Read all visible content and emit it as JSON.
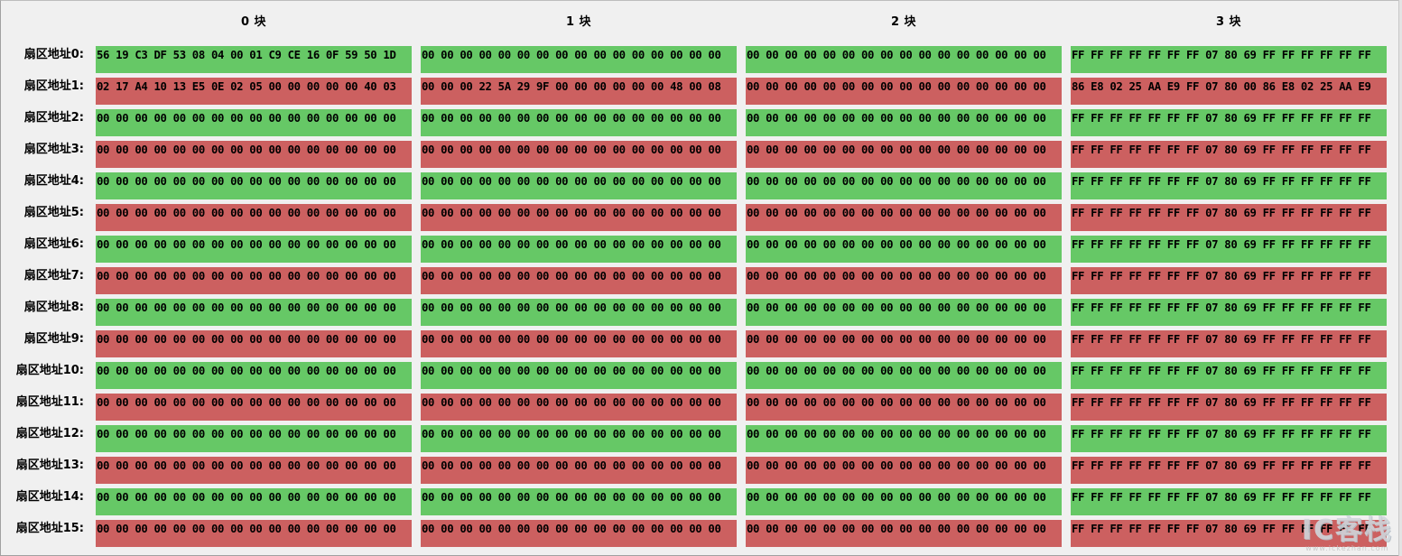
{
  "column_headers": [
    "0 块",
    "1 块",
    "2 块",
    "3 块"
  ],
  "row_labels": [
    "扇区地址0:",
    "扇区地址1:",
    "扇区地址2:",
    "扇区地址3:",
    "扇区地址4:",
    "扇区地址5:",
    "扇区地址6:",
    "扇区地址7:",
    "扇区地址8:",
    "扇区地址9:",
    "扇区地址10:",
    "扇区地址11:",
    "扇区地址12:",
    "扇区地址13:",
    "扇区地址14:",
    "扇区地址15:"
  ],
  "cell_colors": {
    "green": "#66c866",
    "red": "#cc6060"
  },
  "sectors": [
    {
      "color": "green",
      "blocks": [
        "56 19 C3 DF 53 08 04 00 01 C9 CE 16 0F 59 50 1D",
        "00 00 00 00 00 00 00 00 00 00 00 00 00 00 00 00",
        "00 00 00 00 00 00 00 00 00 00 00 00 00 00 00 00",
        "FF FF FF FF FF FF FF 07 80 69 FF FF FF FF FF FF"
      ]
    },
    {
      "color": "red",
      "blocks": [
        "02 17 A4 10 13 E5 0E 02 05 00 00 00 00 00 40 03",
        "00 00 00 22 5A 29 9F 00 00 00 00 00 00 48 00 08",
        "00 00 00 00 00 00 00 00 00 00 00 00 00 00 00 00",
        "86 E8 02 25 AA E9 FF 07 80 00 86 E8 02 25 AA E9"
      ]
    },
    {
      "color": "green",
      "blocks": [
        "00 00 00 00 00 00 00 00 00 00 00 00 00 00 00 00",
        "00 00 00 00 00 00 00 00 00 00 00 00 00 00 00 00",
        "00 00 00 00 00 00 00 00 00 00 00 00 00 00 00 00",
        "FF FF FF FF FF FF FF 07 80 69 FF FF FF FF FF FF"
      ]
    },
    {
      "color": "red",
      "blocks": [
        "00 00 00 00 00 00 00 00 00 00 00 00 00 00 00 00",
        "00 00 00 00 00 00 00 00 00 00 00 00 00 00 00 00",
        "00 00 00 00 00 00 00 00 00 00 00 00 00 00 00 00",
        "FF FF FF FF FF FF FF 07 80 69 FF FF FF FF FF FF"
      ]
    },
    {
      "color": "green",
      "blocks": [
        "00 00 00 00 00 00 00 00 00 00 00 00 00 00 00 00",
        "00 00 00 00 00 00 00 00 00 00 00 00 00 00 00 00",
        "00 00 00 00 00 00 00 00 00 00 00 00 00 00 00 00",
        "FF FF FF FF FF FF FF 07 80 69 FF FF FF FF FF FF"
      ]
    },
    {
      "color": "red",
      "blocks": [
        "00 00 00 00 00 00 00 00 00 00 00 00 00 00 00 00",
        "00 00 00 00 00 00 00 00 00 00 00 00 00 00 00 00",
        "00 00 00 00 00 00 00 00 00 00 00 00 00 00 00 00",
        "FF FF FF FF FF FF FF 07 80 69 FF FF FF FF FF FF"
      ]
    },
    {
      "color": "green",
      "blocks": [
        "00 00 00 00 00 00 00 00 00 00 00 00 00 00 00 00",
        "00 00 00 00 00 00 00 00 00 00 00 00 00 00 00 00",
        "00 00 00 00 00 00 00 00 00 00 00 00 00 00 00 00",
        "FF FF FF FF FF FF FF 07 80 69 FF FF FF FF FF FF"
      ]
    },
    {
      "color": "red",
      "blocks": [
        "00 00 00 00 00 00 00 00 00 00 00 00 00 00 00 00",
        "00 00 00 00 00 00 00 00 00 00 00 00 00 00 00 00",
        "00 00 00 00 00 00 00 00 00 00 00 00 00 00 00 00",
        "FF FF FF FF FF FF FF 07 80 69 FF FF FF FF FF FF"
      ]
    },
    {
      "color": "green",
      "blocks": [
        "00 00 00 00 00 00 00 00 00 00 00 00 00 00 00 00",
        "00 00 00 00 00 00 00 00 00 00 00 00 00 00 00 00",
        "00 00 00 00 00 00 00 00 00 00 00 00 00 00 00 00",
        "FF FF FF FF FF FF FF 07 80 69 FF FF FF FF FF FF"
      ]
    },
    {
      "color": "red",
      "blocks": [
        "00 00 00 00 00 00 00 00 00 00 00 00 00 00 00 00",
        "00 00 00 00 00 00 00 00 00 00 00 00 00 00 00 00",
        "00 00 00 00 00 00 00 00 00 00 00 00 00 00 00 00",
        "FF FF FF FF FF FF FF 07 80 69 FF FF FF FF FF FF"
      ]
    },
    {
      "color": "green",
      "blocks": [
        "00 00 00 00 00 00 00 00 00 00 00 00 00 00 00 00",
        "00 00 00 00 00 00 00 00 00 00 00 00 00 00 00 00",
        "00 00 00 00 00 00 00 00 00 00 00 00 00 00 00 00",
        "FF FF FF FF FF FF FF 07 80 69 FF FF FF FF FF FF"
      ]
    },
    {
      "color": "red",
      "blocks": [
        "00 00 00 00 00 00 00 00 00 00 00 00 00 00 00 00",
        "00 00 00 00 00 00 00 00 00 00 00 00 00 00 00 00",
        "00 00 00 00 00 00 00 00 00 00 00 00 00 00 00 00",
        "FF FF FF FF FF FF FF 07 80 69 FF FF FF FF FF FF"
      ]
    },
    {
      "color": "green",
      "blocks": [
        "00 00 00 00 00 00 00 00 00 00 00 00 00 00 00 00",
        "00 00 00 00 00 00 00 00 00 00 00 00 00 00 00 00",
        "00 00 00 00 00 00 00 00 00 00 00 00 00 00 00 00",
        "FF FF FF FF FF FF FF 07 80 69 FF FF FF FF FF FF"
      ]
    },
    {
      "color": "red",
      "blocks": [
        "00 00 00 00 00 00 00 00 00 00 00 00 00 00 00 00",
        "00 00 00 00 00 00 00 00 00 00 00 00 00 00 00 00",
        "00 00 00 00 00 00 00 00 00 00 00 00 00 00 00 00",
        "FF FF FF FF FF FF FF 07 80 69 FF FF FF FF FF FF"
      ]
    },
    {
      "color": "green",
      "blocks": [
        "00 00 00 00 00 00 00 00 00 00 00 00 00 00 00 00",
        "00 00 00 00 00 00 00 00 00 00 00 00 00 00 00 00",
        "00 00 00 00 00 00 00 00 00 00 00 00 00 00 00 00",
        "FF FF FF FF FF FF FF 07 80 69 FF FF FF FF FF FF"
      ]
    },
    {
      "color": "red",
      "blocks": [
        "00 00 00 00 00 00 00 00 00 00 00 00 00 00 00 00",
        "00 00 00 00 00 00 00 00 00 00 00 00 00 00 00 00",
        "00 00 00 00 00 00 00 00 00 00 00 00 00 00 00 00",
        "FF FF FF FF FF FF FF 07 80 69 FF FF FF FF FF FF"
      ]
    }
  ],
  "watermark": {
    "logo": "IC客栈",
    "url": "www.ickezhan.com"
  }
}
